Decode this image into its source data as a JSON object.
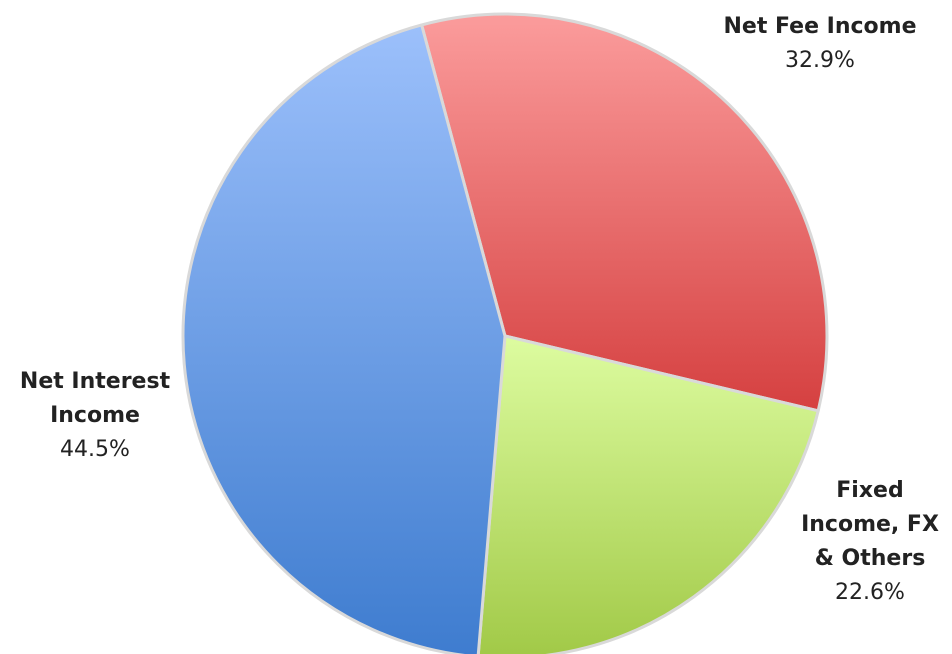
{
  "chart_data": {
    "type": "pie",
    "slices": [
      {
        "label_lines": [
          "Net Fee Income"
        ],
        "value": 32.9,
        "value_label": "32.9%",
        "color_light": "#fb9c9c",
        "color_dark": "#d54040"
      },
      {
        "label_lines": [
          "Fixed",
          "Income, FX",
          "& Others"
        ],
        "value": 22.6,
        "value_label": "22.6%",
        "color_light": "#ddfca0",
        "color_dark": "#a1c947"
      },
      {
        "label_lines": [
          "Net Interest",
          "Income"
        ],
        "value": 44.5,
        "value_label": "44.5%",
        "color_light": "#9cc0fb",
        "color_dark": "#3e7ccf"
      }
    ]
  }
}
